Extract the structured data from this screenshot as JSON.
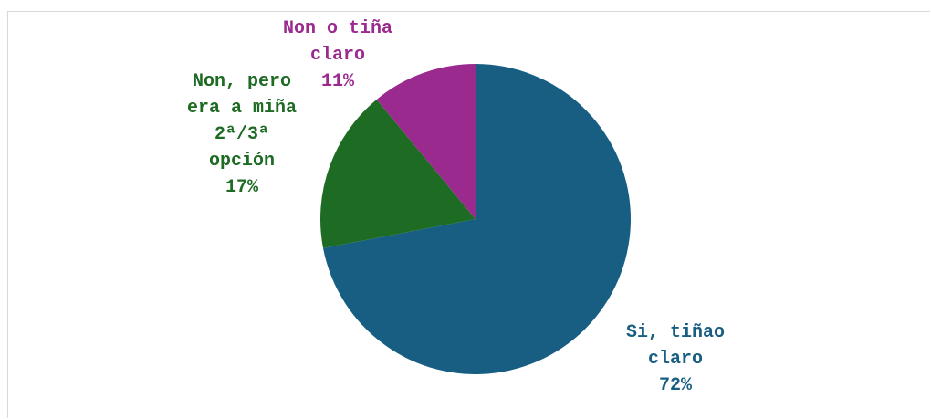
{
  "chart_data": {
    "type": "pie",
    "categories": [
      "Si, tiñao claro",
      "Non, pero era a miña 2ª/3ª opción",
      "Non o tiña claro"
    ],
    "values": [
      72,
      17,
      11
    ],
    "value_labels": [
      "72%",
      "17%",
      "11%"
    ],
    "colors": [
      "#175e82",
      "#1e6b24",
      "#9b2a8f"
    ]
  }
}
